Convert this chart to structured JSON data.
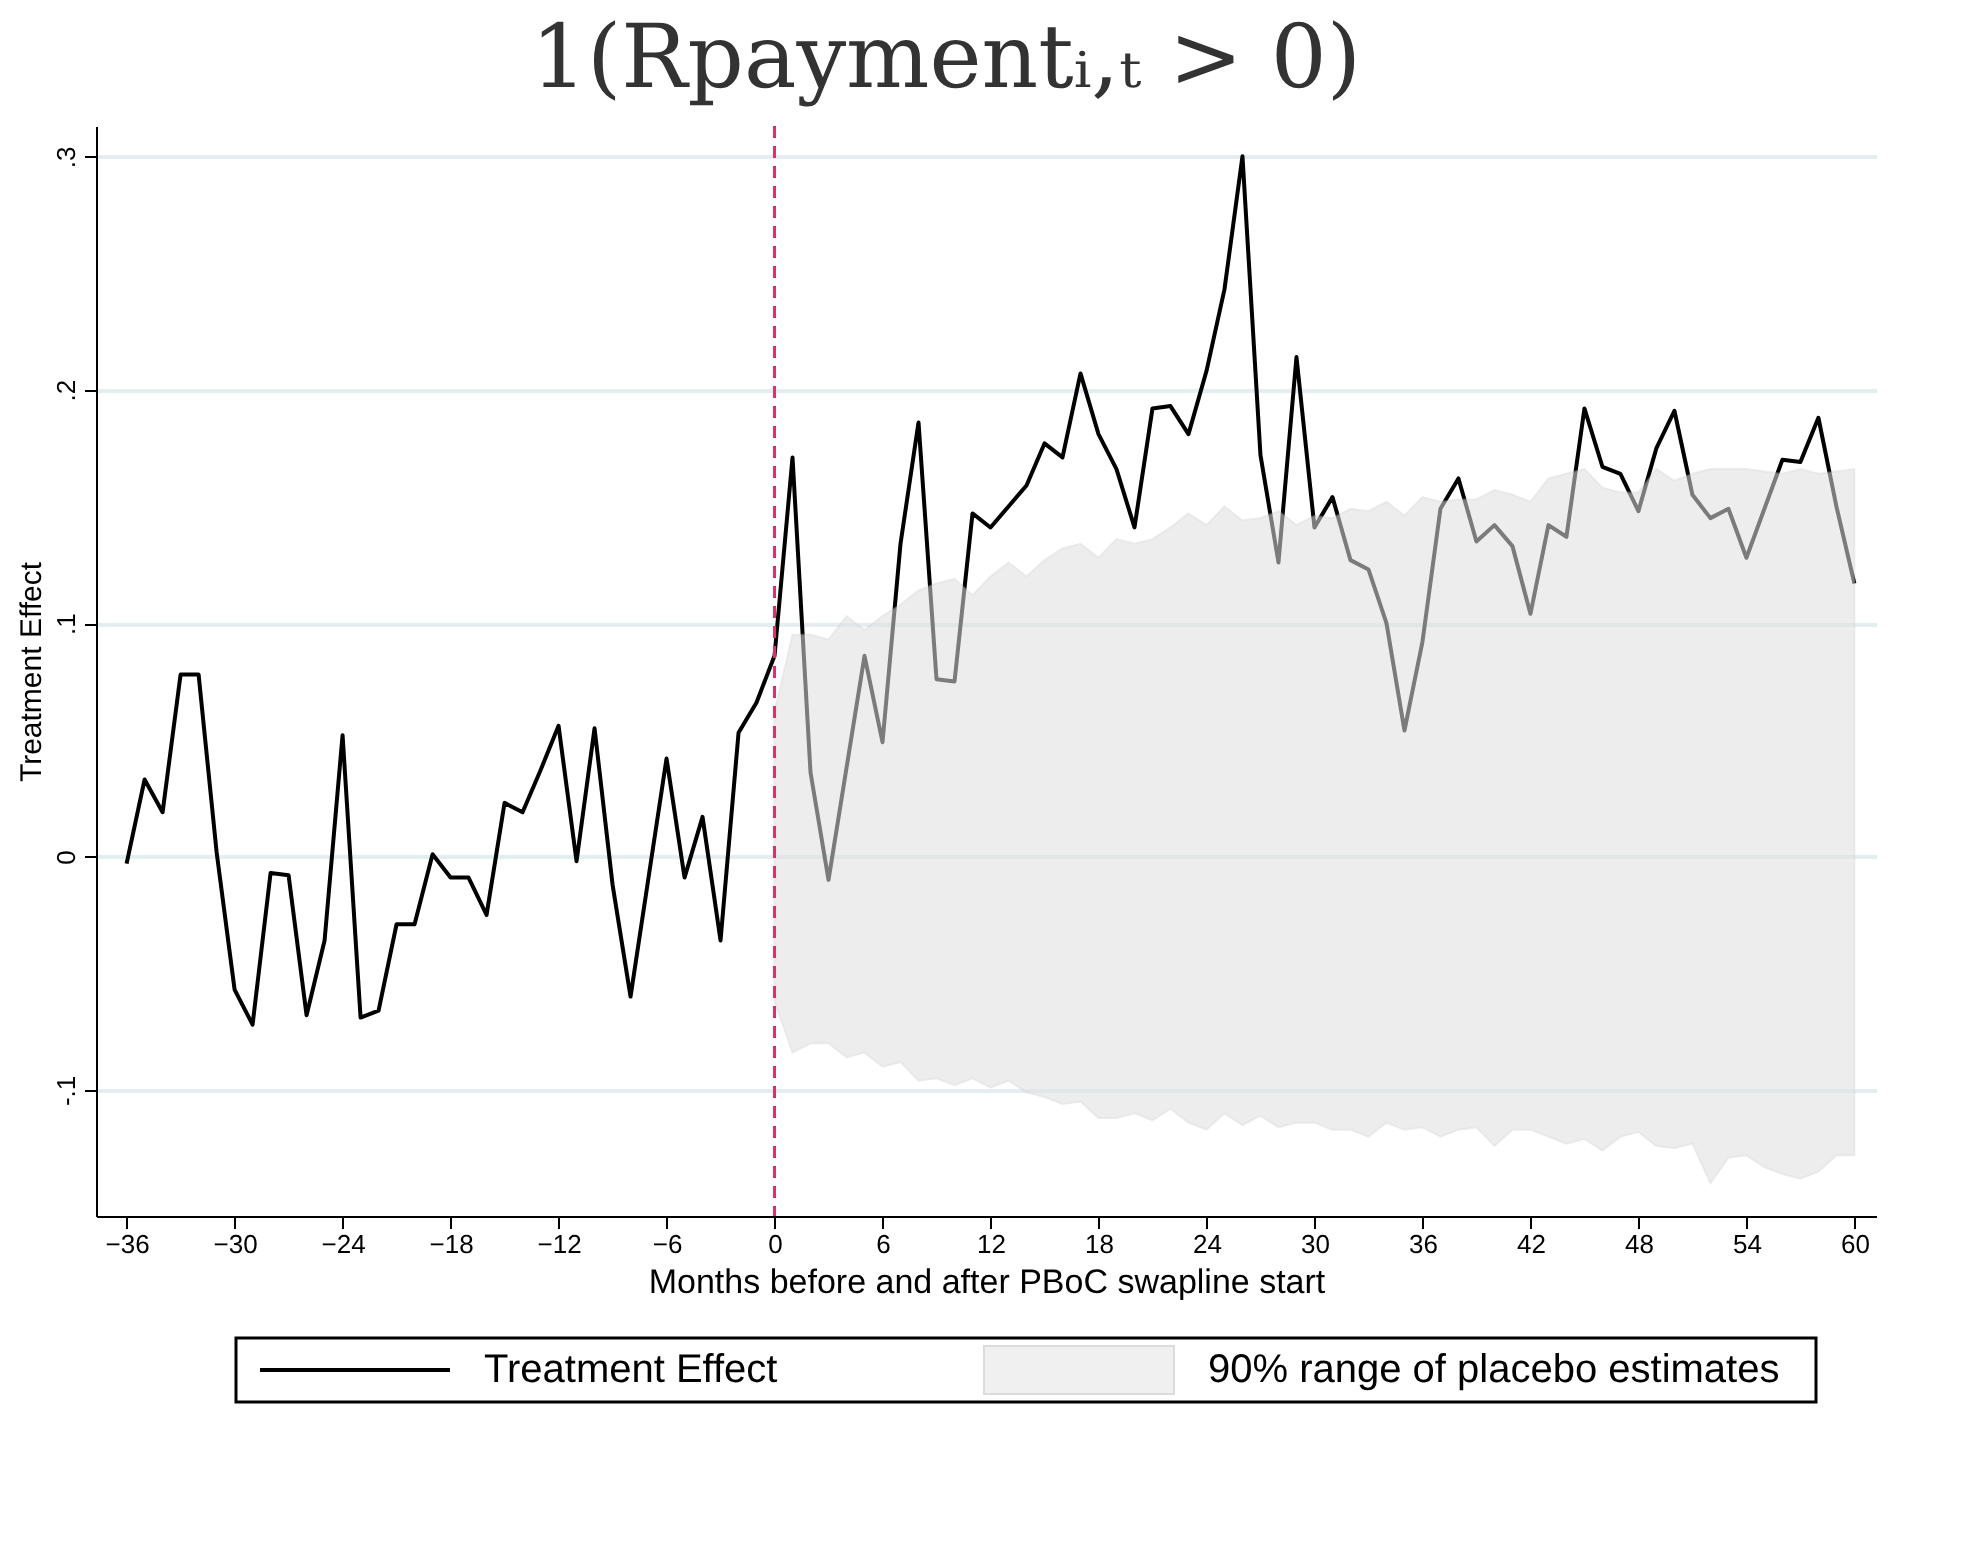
{
  "chart_data": {
    "type": "line",
    "title": "1(Rpaymentᵢ,ₜ > 0)",
    "xlabel": "Months before and after PBoC swapline start",
    "ylabel": "Treatment Effect",
    "xlim": [
      -37.7,
      61.2
    ],
    "ylim": [
      -0.154,
      0.313
    ],
    "xticks": [
      -36,
      -30,
      -24,
      -18,
      -12,
      -6,
      0,
      6,
      12,
      18,
      24,
      30,
      36,
      42,
      48,
      54,
      60
    ],
    "yticks": [
      {
        "value": -0.1,
        "label": "-.1"
      },
      {
        "value": 0,
        "label": "0"
      },
      {
        "value": 0.1,
        "label": ".1"
      },
      {
        "value": 0.2,
        "label": ".2"
      },
      {
        "value": 0.3,
        "label": ".3"
      }
    ],
    "grid": "y",
    "legend": "bottom",
    "line_style": "solid",
    "ref_lines": [
      {
        "axis": "x",
        "value": 0,
        "color": "#d6336c",
        "line_style": "dashed"
      }
    ],
    "series": [
      {
        "name": "Treatment Effect",
        "color": "#000000",
        "x": [
          -36,
          -35,
          -34,
          -33,
          -32,
          -31,
          -30,
          -29,
          -28,
          -27,
          -26,
          -25,
          -24,
          -23,
          -22,
          -21,
          -20,
          -19,
          -18,
          -17,
          -16,
          -15,
          -14,
          -13,
          -12,
          -11,
          -10,
          -9,
          -8,
          -7,
          -6,
          -5,
          -4,
          -3,
          -2,
          -1,
          0,
          1,
          2,
          3,
          4,
          5,
          6,
          7,
          8,
          9,
          10,
          11,
          12,
          13,
          14,
          15,
          16,
          17,
          18,
          19,
          20,
          21,
          22,
          23,
          24,
          25,
          26,
          27,
          28,
          29,
          30,
          31,
          32,
          33,
          34,
          35,
          36,
          37,
          38,
          39,
          40,
          41,
          42,
          43,
          44,
          45,
          46,
          47,
          48,
          49,
          50,
          51,
          52,
          53,
          54,
          55,
          56,
          57,
          58,
          59,
          60
        ],
        "values": [
          -0.003,
          0.033,
          0.019,
          0.078,
          0.078,
          0.002,
          -0.057,
          -0.072,
          -0.007,
          -0.008,
          -0.068,
          -0.036,
          0.052,
          -0.069,
          -0.066,
          -0.029,
          -0.029,
          0.001,
          -0.009,
          -0.009,
          -0.025,
          0.023,
          0.019,
          0.037,
          0.056,
          -0.002,
          0.055,
          -0.012,
          -0.06,
          -0.009,
          0.042,
          -0.009,
          0.017,
          -0.036,
          0.053,
          0.066,
          0.086,
          0.171,
          0.036,
          -0.01,
          0.038,
          0.086,
          0.049,
          0.134,
          0.186,
          0.076,
          0.075,
          0.147,
          0.141,
          0.15,
          0.159,
          0.177,
          0.171,
          0.207,
          0.181,
          0.166,
          0.141,
          0.192,
          0.193,
          0.181,
          0.208,
          0.243,
          0.3,
          0.172,
          0.126,
          0.214,
          0.141,
          0.154,
          0.127,
          0.123,
          0.1,
          0.054,
          0.092,
          0.149,
          0.162,
          0.135,
          0.142,
          0.133,
          0.104,
          0.142,
          0.137,
          0.192,
          0.167,
          0.164,
          0.148,
          0.175,
          0.191,
          0.155,
          0.145,
          0.149,
          0.128,
          0.149,
          0.17,
          0.169,
          0.188,
          0.15,
          0.117
        ]
      },
      {
        "name": "90% range of placebo estimates",
        "type": "line",
        "color": "#e0e0e0",
        "values": [
          null,
          null,
          null,
          null,
          null,
          null,
          null,
          null,
          null,
          null,
          null,
          null,
          null,
          null,
          null,
          null,
          null,
          null,
          null,
          null,
          null,
          null,
          null,
          null,
          null,
          null,
          null,
          null,
          null,
          null,
          null,
          null,
          null,
          null,
          null,
          null,
          null,
          null,
          null,
          null,
          null,
          null,
          null,
          null,
          null,
          null,
          null,
          null,
          null,
          null,
          null,
          null,
          null,
          null,
          null,
          null,
          null,
          null,
          null,
          null,
          null
        ],
        "x": [
          0,
          1,
          2,
          3,
          4,
          5,
          6,
          7,
          8,
          9,
          10,
          11,
          12,
          13,
          14,
          15,
          16,
          17,
          18,
          19,
          20,
          21,
          22,
          23,
          24,
          25,
          26,
          27,
          28,
          29,
          30,
          31,
          32,
          33,
          34,
          35,
          36,
          37,
          38,
          39,
          40,
          41,
          42,
          43,
          44,
          45,
          46,
          47,
          48,
          49,
          50,
          51,
          52,
          53,
          54,
          55,
          56,
          57,
          58,
          59,
          60
        ],
        "lower": [
          -0.062,
          -0.084,
          -0.08,
          -0.08,
          -0.086,
          -0.084,
          -0.09,
          -0.088,
          -0.096,
          -0.095,
          -0.098,
          -0.095,
          -0.099,
          -0.096,
          -0.101,
          -0.103,
          -0.106,
          -0.105,
          -0.112,
          -0.112,
          -0.11,
          -0.113,
          -0.108,
          -0.114,
          -0.117,
          -0.11,
          -0.115,
          -0.111,
          -0.116,
          -0.114,
          -0.114,
          -0.117,
          -0.117,
          -0.12,
          -0.114,
          -0.117,
          -0.116,
          -0.12,
          -0.117,
          -0.116,
          -0.124,
          -0.117,
          -0.117,
          -0.12,
          -0.123,
          -0.121,
          -0.126,
          -0.12,
          -0.118,
          -0.124,
          -0.125,
          -0.123,
          -0.14,
          -0.129,
          -0.128,
          -0.133,
          -0.136,
          -0.138,
          -0.135,
          -0.128,
          -0.128
        ],
        "upper": [
          0.062,
          0.095,
          0.095,
          0.093,
          0.103,
          0.097,
          0.103,
          0.108,
          0.114,
          0.117,
          0.119,
          0.112,
          0.12,
          0.126,
          0.12,
          0.127,
          0.132,
          0.134,
          0.128,
          0.136,
          0.134,
          0.136,
          0.141,
          0.147,
          0.142,
          0.15,
          0.144,
          0.145,
          0.148,
          0.142,
          0.146,
          0.145,
          0.149,
          0.148,
          0.152,
          0.146,
          0.154,
          0.152,
          0.153,
          0.153,
          0.157,
          0.155,
          0.152,
          0.162,
          0.164,
          0.166,
          0.158,
          0.156,
          0.156,
          0.166,
          0.161,
          0.164,
          0.166,
          0.166,
          0.166,
          0.165,
          0.164,
          0.166,
          0.164,
          0.165,
          0.166
        ]
      }
    ]
  }
}
